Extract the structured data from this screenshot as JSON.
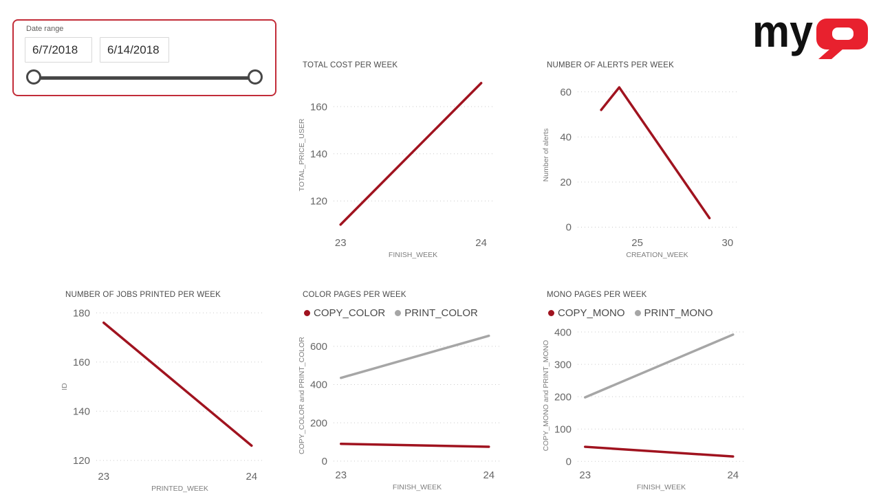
{
  "slicer": {
    "label": "Date range",
    "start_date": "6/7/2018",
    "end_date": "6/14/2018"
  },
  "logo": {
    "word": "my",
    "alt": "myQ"
  },
  "colors": {
    "series_red": "#a0131f",
    "series_gray": "#a6a6a6",
    "logo_red": "#e8212e",
    "logo_black": "#111111",
    "slicer_border": "#c22c38"
  },
  "chart_data": [
    {
      "type": "line",
      "title": "TOTAL COST PER WEEK",
      "xlabel": "FINISH_WEEK",
      "ylabel": "TOTAL_PRICE_USER",
      "xlim": [
        22.95,
        24.08
      ],
      "ylim": [
        107,
        172
      ],
      "xticks": [
        23,
        24
      ],
      "yticks": [
        120,
        140,
        160
      ],
      "grid": "horizontal-dotted",
      "legend": false,
      "series": [
        {
          "name": "TOTAL_PRICE_USER",
          "color": "#a0131f",
          "x": [
            23,
            24
          ],
          "values": [
            110,
            170
          ]
        }
      ]
    },
    {
      "type": "line",
      "title": "NUMBER OF ALERTS PER WEEK",
      "xlabel": "CREATION_WEEK",
      "ylabel": "Number of alerts",
      "xlim": [
        21.7,
        30.5
      ],
      "ylim": [
        -2,
        66
      ],
      "xticks": [
        25,
        30
      ],
      "yticks": [
        0,
        20,
        40,
        60
      ],
      "grid": "horizontal-dotted",
      "legend": false,
      "series": [
        {
          "name": "Number of alerts",
          "color": "#a0131f",
          "x": [
            23,
            24,
            29
          ],
          "values": [
            52,
            62,
            4
          ]
        }
      ]
    },
    {
      "type": "line",
      "title": "NUMBER OF JOBS PRINTED PER WEEK",
      "xlabel": "PRINTED_WEEK",
      "ylabel": "ID",
      "xlim": [
        22.95,
        24.08
      ],
      "ylim": [
        118,
        182
      ],
      "xticks": [
        23,
        24
      ],
      "yticks": [
        120,
        140,
        160,
        180
      ],
      "grid": "horizontal-dotted",
      "legend": false,
      "series": [
        {
          "name": "ID",
          "color": "#a0131f",
          "x": [
            23,
            24
          ],
          "values": [
            176,
            126
          ]
        }
      ]
    },
    {
      "type": "line",
      "title": "COLOR PAGES PER WEEK",
      "xlabel": "FINISH_WEEK",
      "ylabel": "COPY_COLOR and PRINT_COLOR",
      "xlim": [
        22.95,
        24.08
      ],
      "ylim": [
        -15,
        700
      ],
      "xticks": [
        23,
        24
      ],
      "yticks": [
        0,
        200,
        400,
        600
      ],
      "grid": "horizontal-dotted",
      "legend": true,
      "series": [
        {
          "name": "COPY_COLOR",
          "color": "#a0131f",
          "x": [
            23,
            24
          ],
          "values": [
            90,
            75
          ]
        },
        {
          "name": "PRINT_COLOR",
          "color": "#a6a6a6",
          "x": [
            23,
            24
          ],
          "values": [
            435,
            655
          ]
        }
      ]
    },
    {
      "type": "line",
      "title": "MONO PAGES PER WEEK",
      "xlabel": "FINISH_WEEK",
      "ylabel": "COPY_MONO and PRINT_MONO",
      "xlim": [
        22.95,
        24.08
      ],
      "ylim": [
        -8,
        415
      ],
      "xticks": [
        23,
        24
      ],
      "yticks": [
        0,
        100,
        200,
        300,
        400
      ],
      "grid": "horizontal-dotted",
      "legend": true,
      "series": [
        {
          "name": "COPY_MONO",
          "color": "#a0131f",
          "x": [
            23,
            24
          ],
          "values": [
            45,
            15
          ]
        },
        {
          "name": "PRINT_MONO",
          "color": "#a6a6a6",
          "x": [
            23,
            24
          ],
          "values": [
            198,
            392
          ]
        }
      ]
    }
  ]
}
